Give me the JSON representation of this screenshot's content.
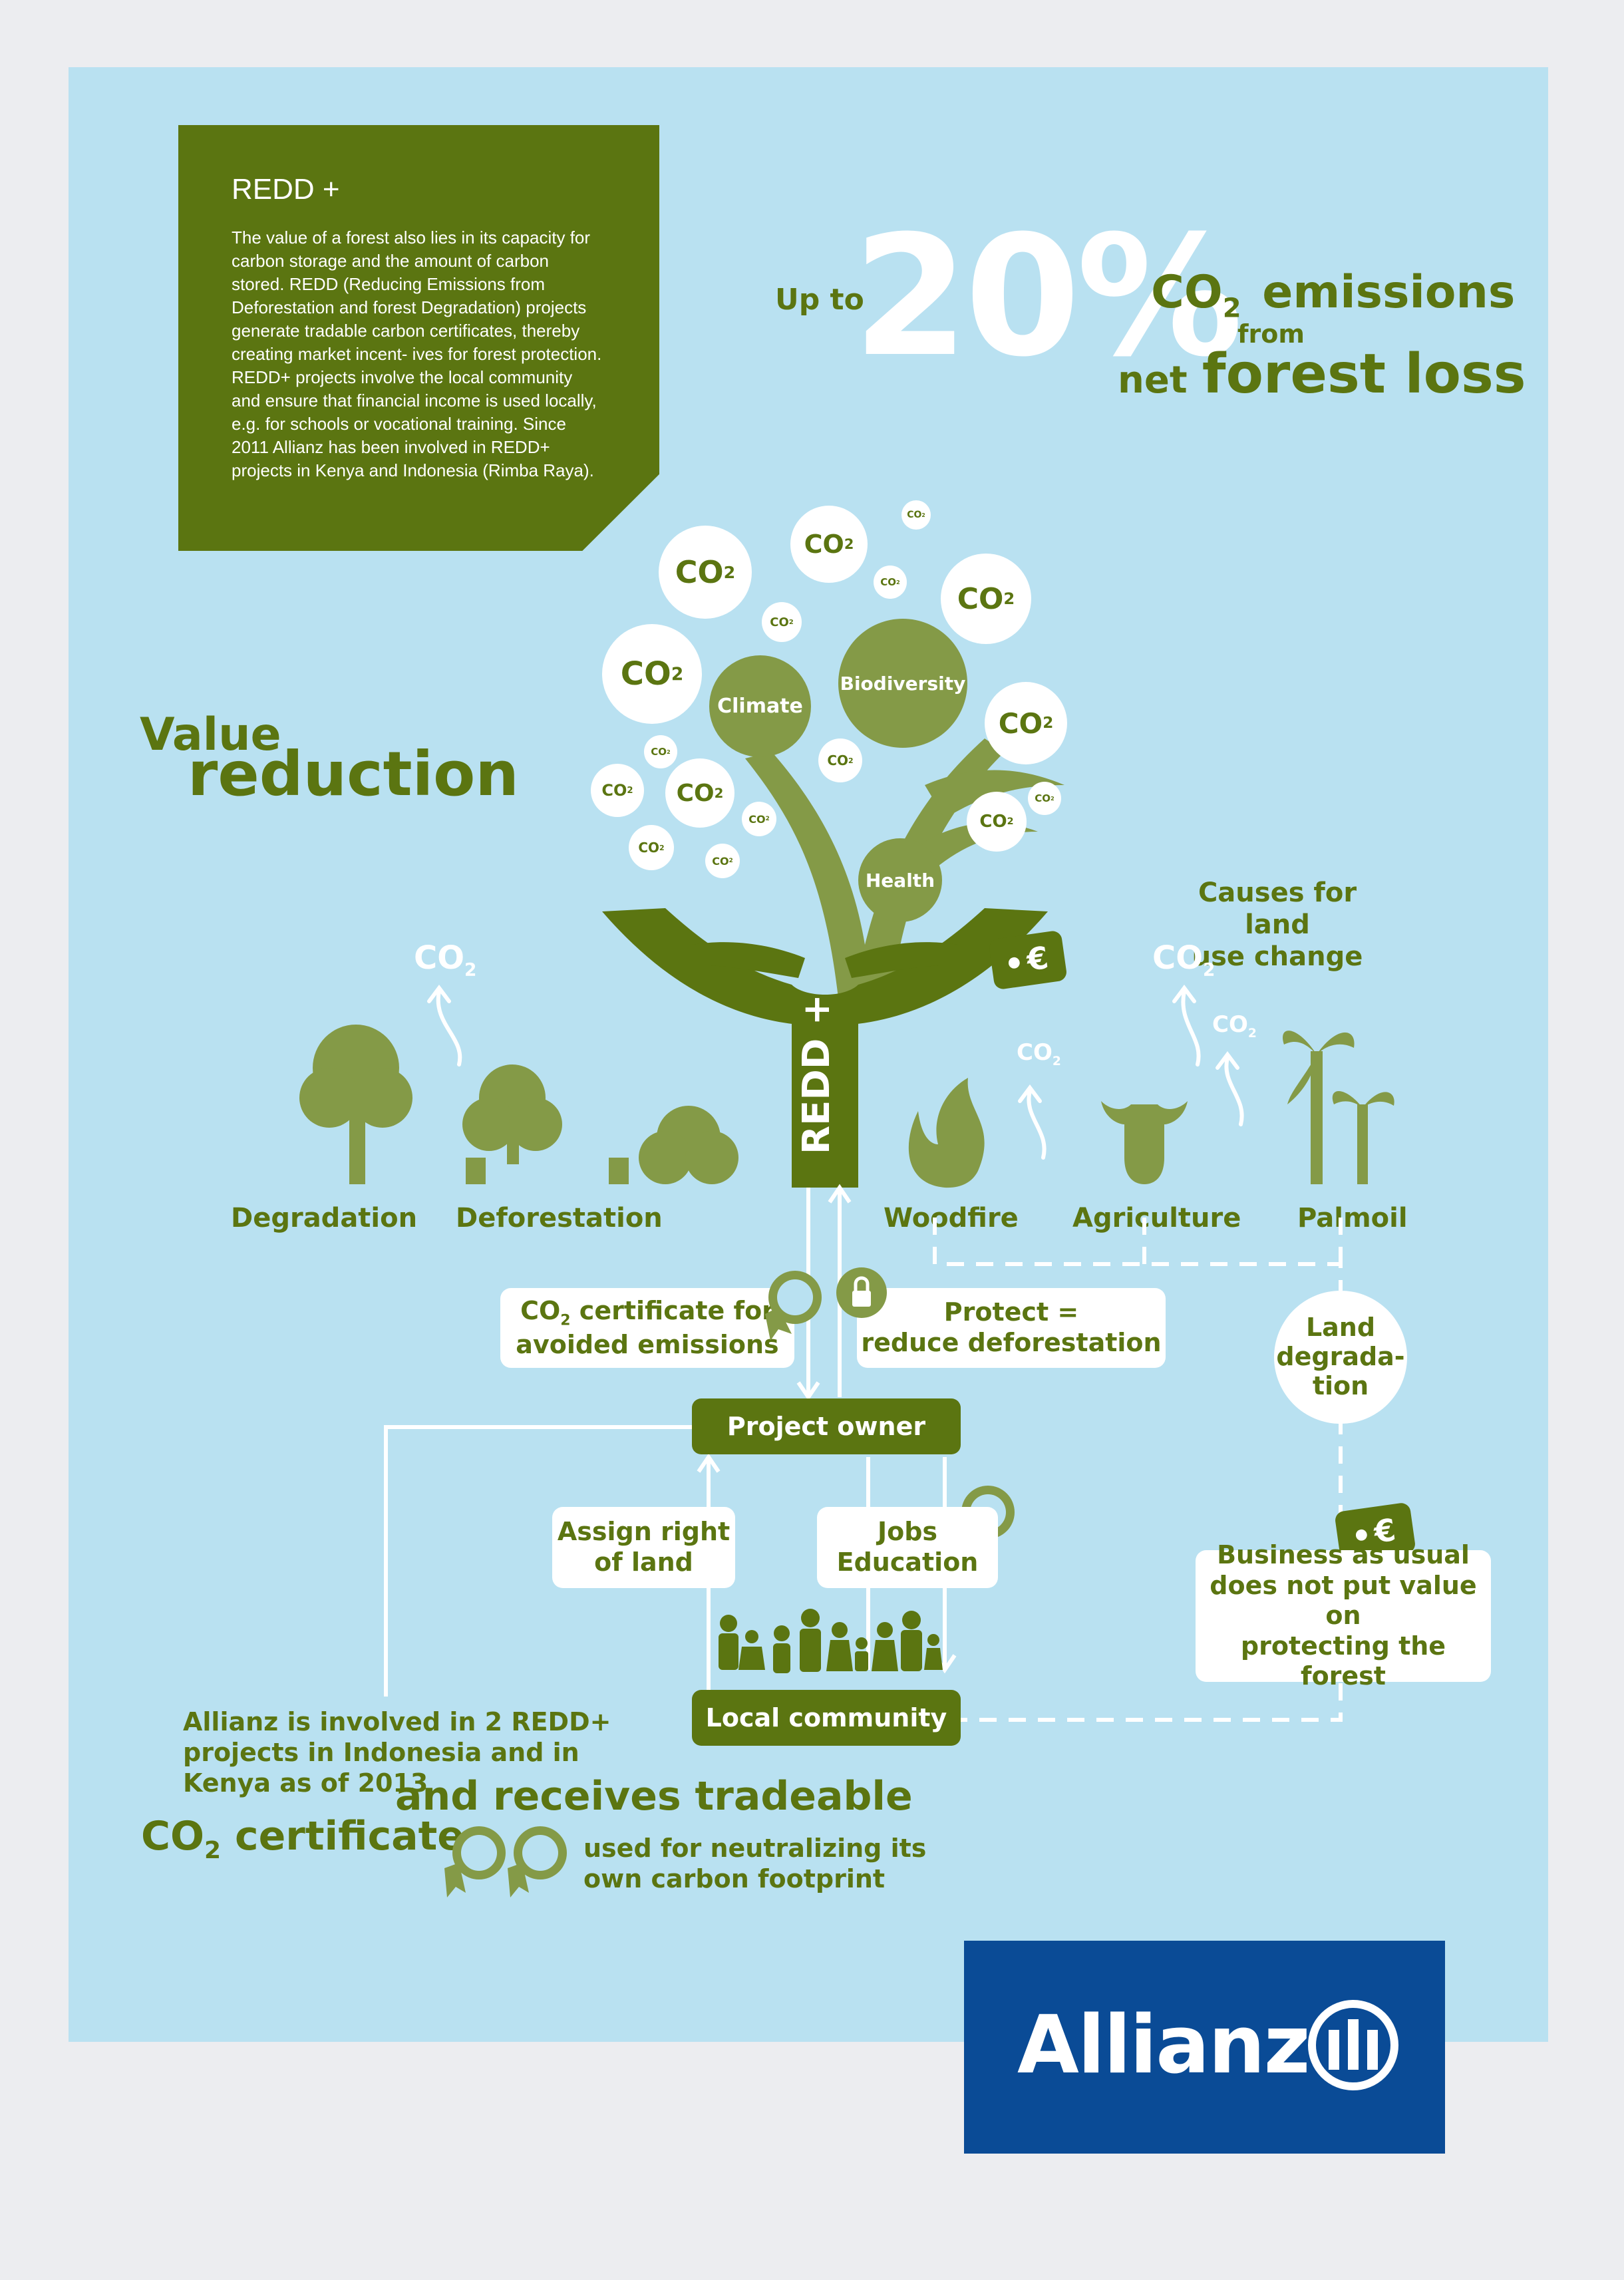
{
  "info": {
    "title": "REDD +",
    "body": "The value of a forest also lies in its capacity for carbon storage and the amount of carbon stored. REDD (Reducing Emissions from Deforestation and forest Degradation) projects generate tradable carbon certificates, thereby creating market incent- ives for forest protection. REDD+ projects involve the local community and ensure that financial income is used locally, e.g. for schools or vocational training. Since 2011 Allianz has been involved in REDD+ projects in Kenya and Indonesia (Rimba Raya)."
  },
  "headline": {
    "up_to": "Up to",
    "percent": "20%",
    "co2": "CO",
    "co2_sub": "2",
    "emissions": "emissions",
    "from": "from",
    "net": "net",
    "forest_loss": "forest loss"
  },
  "value_reduction": {
    "line1": "Value",
    "line2": "reduction"
  },
  "co2_label": "CO",
  "co2_sub": "2",
  "tree": {
    "climate": "Climate",
    "biodiversity": "Biodiversity",
    "health": "Health",
    "trunk_label": "REDD +",
    "euro": "€"
  },
  "causes": {
    "title_line1": "Causes for land",
    "title_line2": "use change"
  },
  "items": {
    "degradation": "Degradation",
    "deforestation": "Deforestation",
    "woodfire": "Woodfire",
    "agriculture": "Agriculture",
    "palmoil": "Palmoil"
  },
  "flow": {
    "certificate_pre": "CO",
    "certificate_sub": "2",
    "certificate_line1": " certificate for",
    "certificate_line2": "avoided emissions",
    "protect_line1": "Protect =",
    "protect_line2": "reduce deforestation",
    "project_owner": "Project owner",
    "land_line1": "Land",
    "land_line2": "degrada-",
    "land_line3": "tion",
    "assign_line1": "Assign right",
    "assign_line2": "of land",
    "jobs_line1": "Jobs",
    "jobs_line2": "Education",
    "business_line1": "Business as usual",
    "business_line2": "does not put value on",
    "business_line3": "protecting the forest",
    "local_community": "Local community",
    "euro": "€"
  },
  "bottom": {
    "line1": "Allianz is involved in 2 REDD+",
    "line2": "projects in Indonesia and in",
    "line3": "Kenya as of 2013",
    "receives": "and receives tradeable",
    "co2": "CO",
    "co2_sub": "2",
    "certificates": " certificates",
    "used1": "used for neutralizing its",
    "used2": "own carbon footprint"
  },
  "logo": {
    "name": "Allianz"
  },
  "colors": {
    "green": "#5b7511",
    "light_green": "#849a47",
    "sky": "#b9e1f1",
    "allianz_blue": "#0a4b96"
  }
}
